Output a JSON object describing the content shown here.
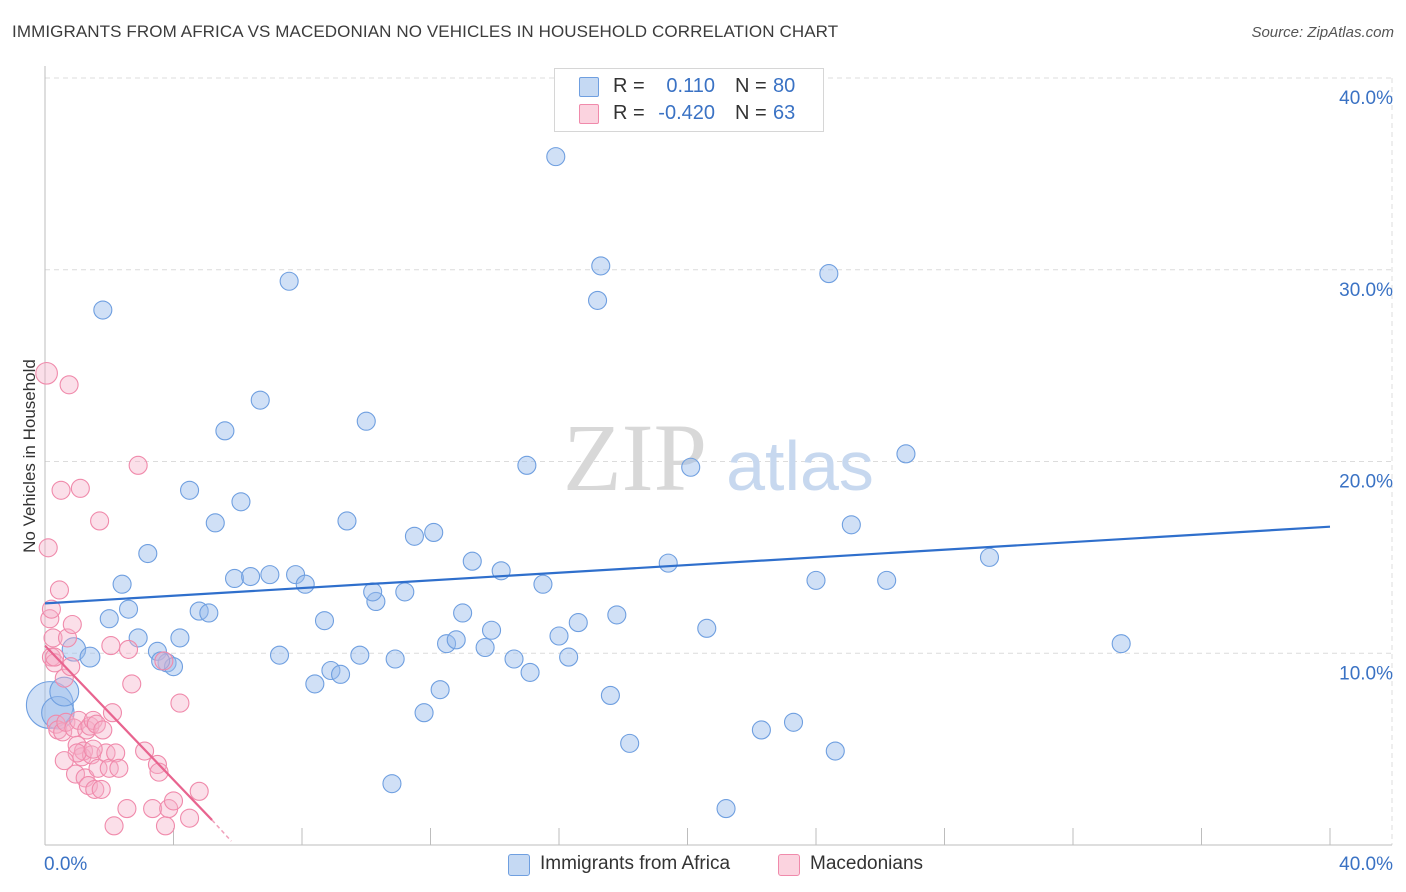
{
  "title": "IMMIGRANTS FROM AFRICA VS MACEDONIAN NO VEHICLES IN HOUSEHOLD CORRELATION CHART",
  "source": "Source: ZipAtlas.com",
  "watermark": {
    "zip": "ZIP",
    "atlas": "atlas"
  },
  "legend": {
    "rows": [
      {
        "r_label": "R =",
        "r_value": "0.110",
        "n_label": "N =",
        "n_value": "80",
        "color": "#6f9fe0"
      },
      {
        "r_label": "R =",
        "r_value": "-0.420",
        "n_label": "N =",
        "n_value": "63",
        "color": "#f08aab"
      }
    ]
  },
  "bottom_legend": [
    {
      "label": "Immigrants from Africa",
      "color": "#6f9fe0"
    },
    {
      "label": "Macedonians",
      "color": "#f08aab"
    }
  ],
  "chart_data": {
    "type": "scatter",
    "title": "IMMIGRANTS FROM AFRICA VS MACEDONIAN NO VEHICLES IN HOUSEHOLD CORRELATION CHART",
    "xlabel": "",
    "ylabel": "No Vehicles in Household",
    "xlim": [
      0,
      40
    ],
    "ylim": [
      0,
      40
    ],
    "x_tick_labels": [
      {
        "value": 0,
        "label": "0.0%"
      },
      {
        "value": 40,
        "label": "40.0%"
      }
    ],
    "y_tick_labels": [
      {
        "value": 10,
        "label": "10.0%"
      },
      {
        "value": 20,
        "label": "20.0%"
      },
      {
        "value": 30,
        "label": "30.0%"
      },
      {
        "value": 40,
        "label": "40.0%"
      }
    ],
    "series": [
      {
        "name": "Immigrants from Africa",
        "color": "#6f9fe0",
        "trend": {
          "x": [
            0,
            40
          ],
          "y": [
            12.6,
            16.6
          ]
        },
        "points": [
          [
            0.15,
            7.3,
            2.6
          ],
          [
            0.4,
            6.9,
            1.8
          ],
          [
            0.6,
            8.0,
            1.6
          ],
          [
            0.9,
            10.2,
            1.3
          ],
          [
            1.4,
            9.8,
            1.1
          ],
          [
            1.8,
            27.9,
            1.0
          ],
          [
            2.0,
            11.8,
            1.0
          ],
          [
            2.4,
            13.6,
            1.0
          ],
          [
            2.6,
            12.3,
            1.0
          ],
          [
            2.9,
            10.8,
            1.0
          ],
          [
            3.2,
            15.2,
            1.0
          ],
          [
            3.5,
            10.1,
            1.0
          ],
          [
            3.8,
            9.5,
            1.0
          ],
          [
            4.0,
            9.3,
            1.0
          ],
          [
            4.2,
            10.8,
            1.0
          ],
          [
            4.5,
            18.5,
            1.0
          ],
          [
            4.8,
            12.2,
            1.0
          ],
          [
            5.1,
            12.1,
            1.0
          ],
          [
            5.3,
            16.8,
            1.0
          ],
          [
            5.6,
            21.6,
            1.0
          ],
          [
            5.9,
            13.9,
            1.0
          ],
          [
            6.1,
            17.9,
            1.0
          ],
          [
            6.4,
            14.0,
            1.0
          ],
          [
            6.7,
            23.2,
            1.0
          ],
          [
            7.0,
            14.1,
            1.0
          ],
          [
            7.3,
            9.9,
            1.0
          ],
          [
            7.6,
            29.4,
            1.0
          ],
          [
            7.8,
            14.1,
            1.0
          ],
          [
            8.1,
            13.6,
            1.0
          ],
          [
            8.4,
            8.4,
            1.0
          ],
          [
            8.7,
            11.7,
            1.0
          ],
          [
            8.9,
            9.1,
            1.0
          ],
          [
            9.2,
            8.9,
            1.0
          ],
          [
            9.4,
            16.9,
            1.0
          ],
          [
            9.8,
            9.9,
            1.0
          ],
          [
            10.0,
            22.1,
            1.0
          ],
          [
            10.3,
            12.7,
            1.0
          ],
          [
            10.8,
            3.2,
            1.0
          ],
          [
            10.9,
            9.7,
            1.0
          ],
          [
            11.2,
            13.2,
            1.0
          ],
          [
            11.5,
            16.1,
            1.0
          ],
          [
            11.8,
            6.9,
            1.0
          ],
          [
            12.1,
            16.3,
            1.0
          ],
          [
            12.3,
            8.1,
            1.0
          ],
          [
            12.5,
            10.5,
            1.0
          ],
          [
            12.8,
            10.7,
            1.0
          ],
          [
            13.0,
            12.1,
            1.0
          ],
          [
            13.3,
            14.8,
            1.0
          ],
          [
            13.7,
            10.3,
            1.0
          ],
          [
            13.9,
            11.2,
            1.0
          ],
          [
            14.2,
            14.3,
            1.0
          ],
          [
            14.6,
            9.7,
            1.0
          ],
          [
            15.0,
            19.8,
            1.0
          ],
          [
            15.1,
            9.0,
            1.0
          ],
          [
            15.5,
            13.6,
            1.0
          ],
          [
            15.9,
            35.9,
            1.0
          ],
          [
            16.0,
            10.9,
            1.0
          ],
          [
            16.3,
            9.8,
            1.0
          ],
          [
            16.6,
            11.6,
            1.0
          ],
          [
            17.2,
            28.4,
            1.0
          ],
          [
            17.3,
            30.2,
            1.0
          ],
          [
            17.6,
            7.8,
            1.0
          ],
          [
            17.8,
            12.0,
            1.0
          ],
          [
            18.2,
            5.3,
            1.0
          ],
          [
            19.4,
            14.7,
            1.0
          ],
          [
            20.1,
            19.7,
            1.0
          ],
          [
            20.6,
            11.3,
            1.0
          ],
          [
            21.2,
            1.9,
            1.0
          ],
          [
            22.3,
            6.0,
            1.0
          ],
          [
            23.3,
            6.4,
            1.0
          ],
          [
            24.0,
            13.8,
            1.0
          ],
          [
            24.4,
            29.8,
            1.0
          ],
          [
            24.6,
            4.9,
            1.0
          ],
          [
            25.1,
            16.7,
            1.0
          ],
          [
            26.2,
            13.8,
            1.0
          ],
          [
            26.8,
            20.4,
            1.0
          ],
          [
            29.4,
            15.0,
            1.0
          ],
          [
            33.5,
            10.5,
            1.0
          ],
          [
            10.2,
            13.2,
            1.0
          ],
          [
            3.6,
            9.6,
            1.0
          ]
        ]
      },
      {
        "name": "Macedonians",
        "color": "#f08aab",
        "trend": {
          "x": [
            0,
            5.2
          ],
          "y": [
            10.4,
            1.3
          ],
          "dash_x": [
            5.2,
            5.8
          ],
          "dash_y": [
            1.3,
            0.2
          ]
        },
        "points": [
          [
            0.05,
            24.6,
            1.2
          ],
          [
            0.1,
            15.5,
            1.0
          ],
          [
            0.15,
            11.8,
            1.0
          ],
          [
            0.2,
            12.3,
            1.0
          ],
          [
            0.2,
            9.8,
            1.0
          ],
          [
            0.25,
            10.8,
            1.0
          ],
          [
            0.3,
            9.5,
            1.0
          ],
          [
            0.35,
            6.3,
            1.0
          ],
          [
            0.4,
            6.0,
            1.0
          ],
          [
            0.45,
            13.3,
            1.0
          ],
          [
            0.5,
            18.5,
            1.0
          ],
          [
            0.55,
            5.9,
            1.0
          ],
          [
            0.6,
            8.7,
            1.0
          ],
          [
            0.65,
            6.4,
            1.0
          ],
          [
            0.7,
            10.8,
            1.0
          ],
          [
            0.75,
            24.0,
            1.0
          ],
          [
            0.8,
            9.3,
            1.0
          ],
          [
            0.85,
            11.5,
            1.0
          ],
          [
            0.9,
            6.1,
            1.0
          ],
          [
            0.95,
            3.7,
            1.0
          ],
          [
            1.0,
            5.2,
            1.0
          ],
          [
            1.05,
            6.5,
            1.0
          ],
          [
            1.1,
            18.6,
            1.0
          ],
          [
            1.15,
            4.6,
            1.0
          ],
          [
            1.2,
            4.9,
            1.0
          ],
          [
            1.25,
            3.5,
            1.0
          ],
          [
            1.3,
            6.0,
            1.0
          ],
          [
            1.35,
            3.1,
            1.0
          ],
          [
            1.4,
            6.2,
            1.0
          ],
          [
            1.45,
            4.7,
            1.0
          ],
          [
            1.5,
            6.5,
            1.0
          ],
          [
            1.55,
            2.9,
            1.0
          ],
          [
            1.6,
            6.3,
            1.0
          ],
          [
            1.65,
            4.0,
            1.0
          ],
          [
            1.7,
            16.9,
            1.0
          ],
          [
            1.75,
            2.9,
            1.0
          ],
          [
            1.8,
            6.0,
            1.0
          ],
          [
            1.9,
            4.8,
            1.0
          ],
          [
            2.0,
            4.0,
            1.0
          ],
          [
            2.05,
            10.4,
            1.0
          ],
          [
            2.1,
            6.9,
            1.0
          ],
          [
            2.15,
            1.0,
            1.0
          ],
          [
            2.2,
            4.8,
            1.0
          ],
          [
            2.3,
            4.0,
            1.0
          ],
          [
            2.55,
            1.9,
            1.0
          ],
          [
            2.6,
            10.2,
            1.0
          ],
          [
            2.7,
            8.4,
            1.0
          ],
          [
            2.9,
            19.8,
            1.0
          ],
          [
            3.1,
            4.9,
            1.0
          ],
          [
            3.35,
            1.9,
            1.0
          ],
          [
            3.5,
            4.2,
            1.0
          ],
          [
            3.55,
            3.8,
            1.0
          ],
          [
            3.7,
            9.6,
            1.0
          ],
          [
            3.75,
            1.0,
            1.0
          ],
          [
            3.85,
            1.9,
            1.0
          ],
          [
            4.0,
            2.3,
            1.0
          ],
          [
            4.2,
            7.4,
            1.0
          ],
          [
            4.5,
            1.4,
            1.0
          ],
          [
            4.8,
            2.8,
            1.0
          ],
          [
            1.0,
            4.8,
            1.0
          ],
          [
            0.3,
            9.8,
            1.0
          ],
          [
            1.5,
            5.0,
            1.0
          ],
          [
            0.6,
            4.4,
            1.0
          ]
        ]
      }
    ]
  }
}
